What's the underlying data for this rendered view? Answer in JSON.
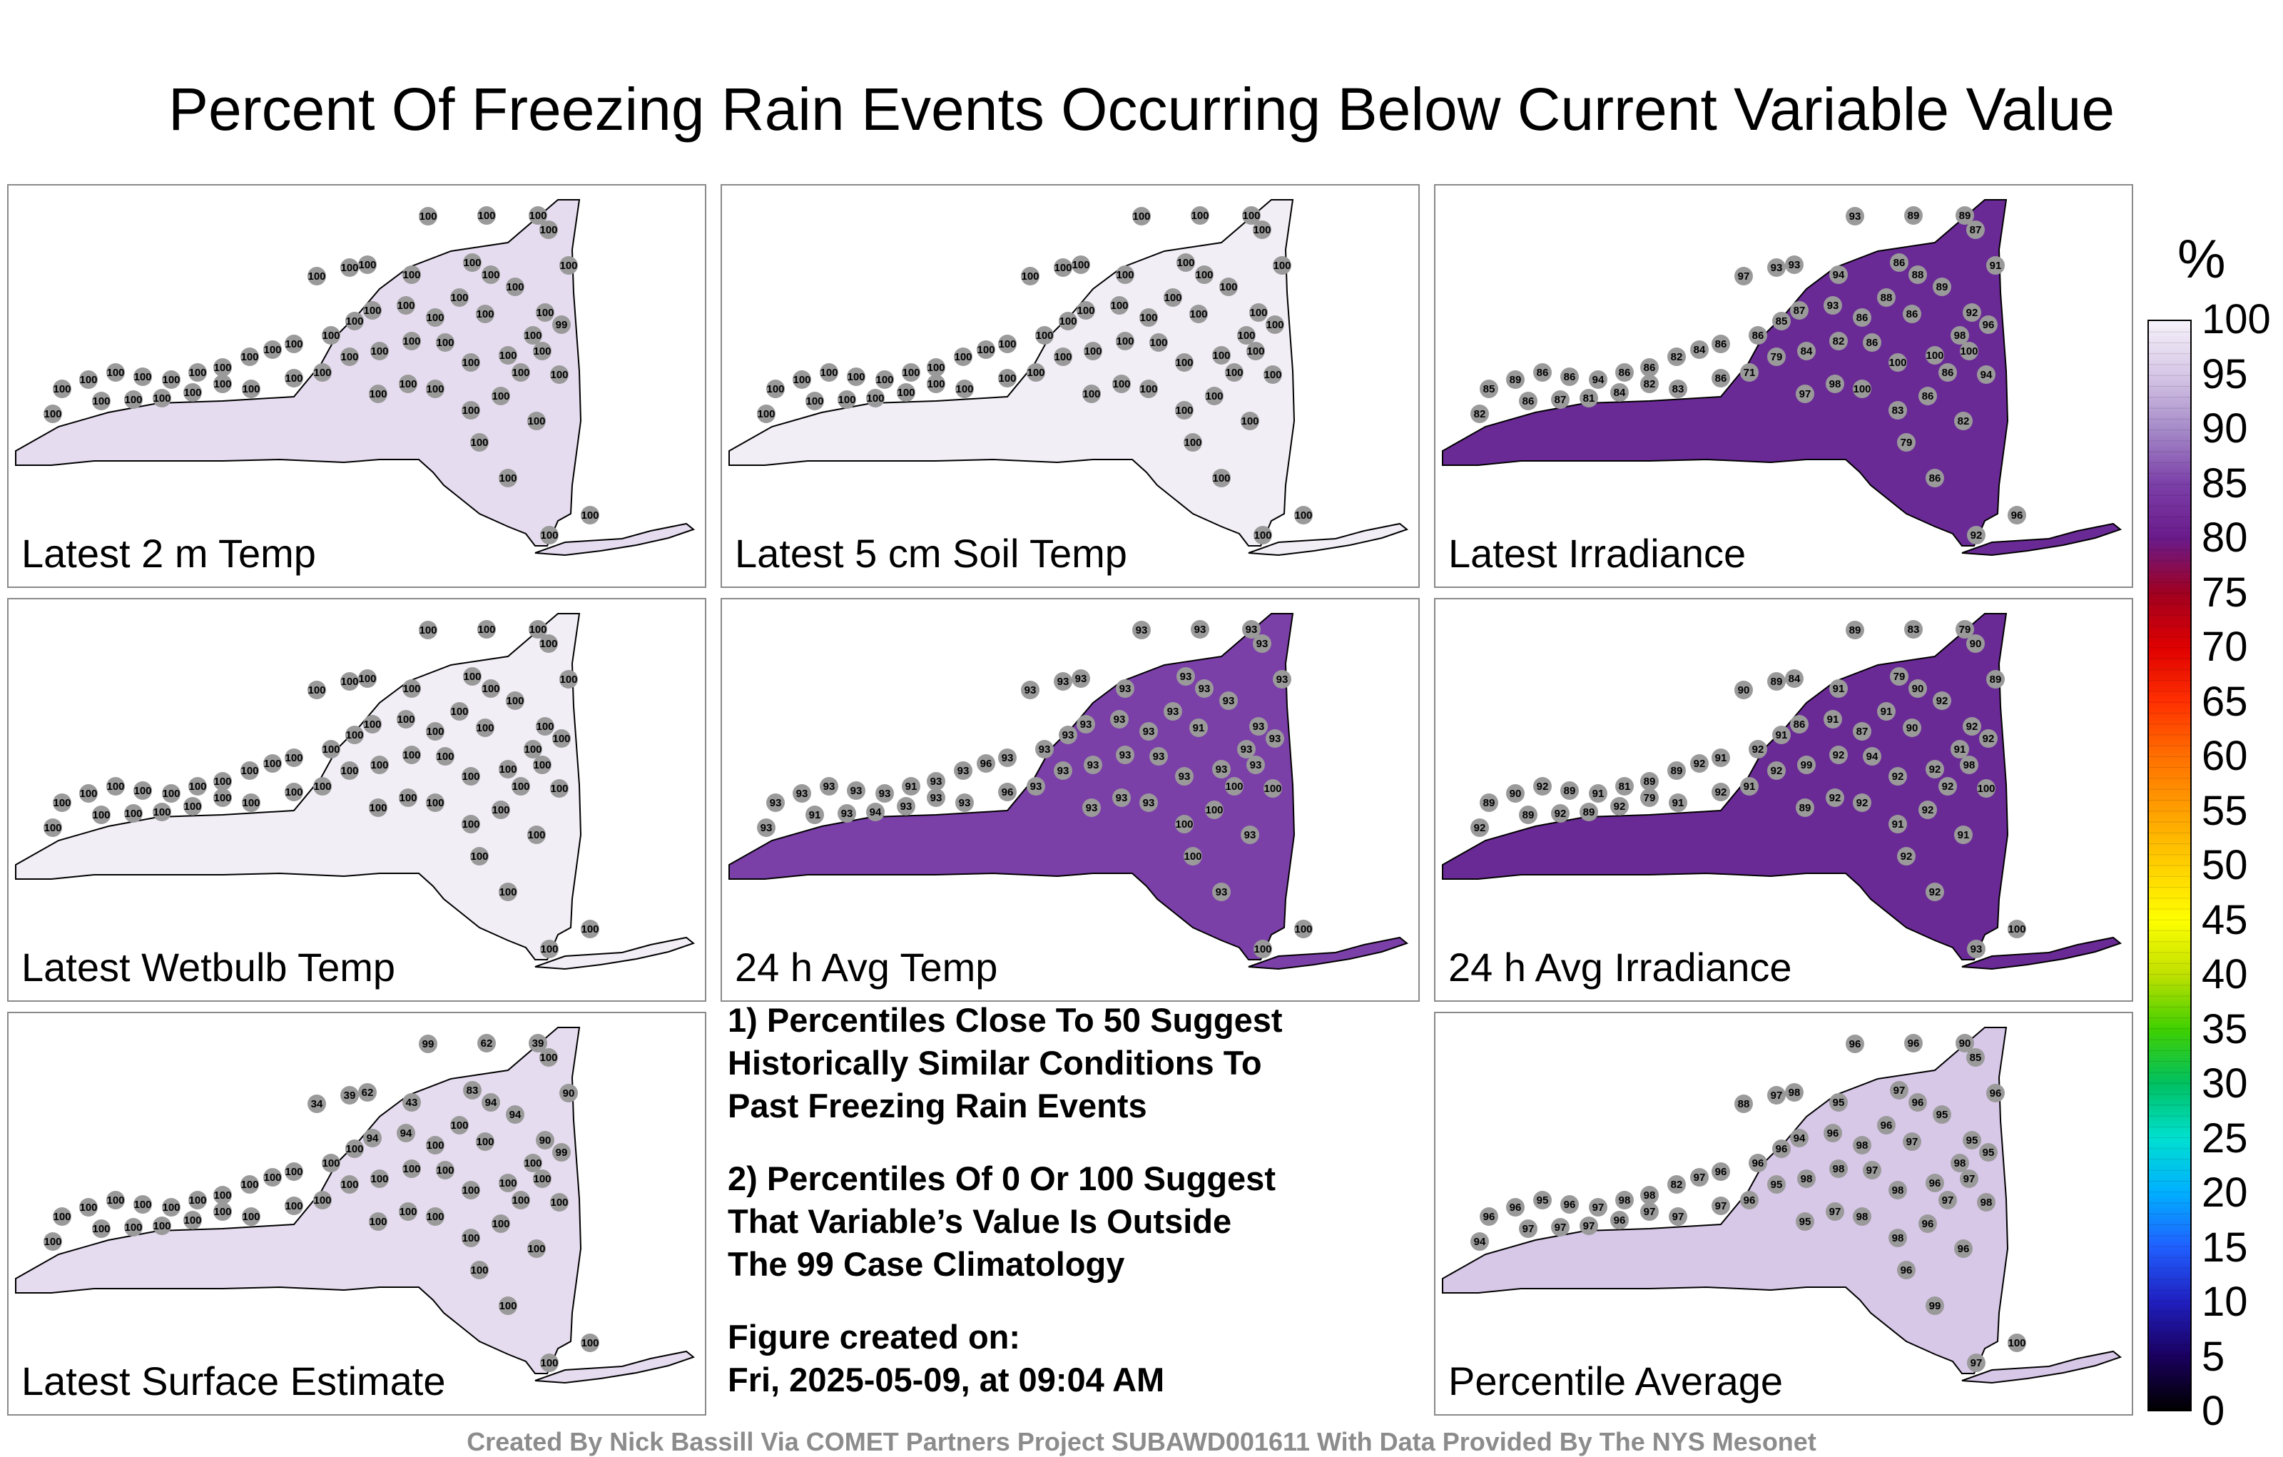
{
  "title": "Percent Of Freezing Rain Events Occurring Below Current Variable Value",
  "panels": [
    {
      "label": "Latest 2 m Temp",
      "fill": "#e6dcef",
      "values": [
        100,
        100,
        100,
        100,
        100,
        100,
        100,
        100,
        100,
        100,
        100,
        100,
        100,
        100,
        100,
        100,
        100,
        100,
        100,
        99,
        100,
        100,
        100,
        100,
        100,
        100,
        100,
        100,
        100,
        100,
        100,
        100,
        100,
        100,
        100,
        100,
        100,
        100,
        100,
        100,
        100,
        100,
        100,
        100,
        100,
        100,
        100,
        100,
        100,
        100,
        100,
        100,
        100,
        100,
        100,
        100,
        100,
        100,
        100,
        100
      ]
    },
    {
      "label": "Latest 5 cm Soil Temp",
      "fill": "#f2eef6",
      "values": [
        100,
        100,
        100,
        100,
        100,
        100,
        100,
        100,
        100,
        100,
        100,
        100,
        100,
        100,
        100,
        100,
        100,
        100,
        100,
        100,
        100,
        100,
        100,
        100,
        100,
        100,
        100,
        100,
        100,
        100,
        100,
        100,
        100,
        100,
        100,
        100,
        100,
        100,
        100,
        100,
        100,
        100,
        100,
        100,
        100,
        100,
        100,
        100,
        100,
        100,
        100,
        100,
        100,
        100,
        100,
        100,
        100,
        100,
        100,
        100
      ]
    },
    {
      "label": "Latest Irradiance",
      "fill": "#6a2a96",
      "values": [
        93,
        89,
        89,
        87,
        93,
        97,
        93,
        94,
        86,
        88,
        89,
        91,
        86,
        88,
        93,
        87,
        86,
        92,
        98,
        96,
        85,
        86,
        86,
        84,
        82,
        86,
        86,
        94,
        86,
        86,
        89,
        85,
        82,
        86,
        87,
        81,
        84,
        82,
        83,
        86,
        71,
        79,
        84,
        82,
        86,
        100,
        100,
        100,
        94,
        86,
        86,
        83,
        100,
        98,
        97,
        79,
        82,
        86,
        92,
        96
      ]
    },
    {
      "label": "Latest Wetbulb Temp",
      "fill": "#f2eef6",
      "values": [
        100,
        100,
        100,
        100,
        100,
        100,
        100,
        100,
        100,
        100,
        100,
        100,
        100,
        100,
        100,
        100,
        100,
        100,
        100,
        100,
        100,
        100,
        100,
        100,
        100,
        100,
        100,
        100,
        100,
        100,
        100,
        100,
        100,
        100,
        100,
        100,
        100,
        100,
        100,
        100,
        100,
        100,
        100,
        100,
        100,
        100,
        100,
        100,
        100,
        100,
        100,
        100,
        100,
        100,
        100,
        100,
        100,
        100,
        100,
        100
      ]
    },
    {
      "label": "24 h Avg Temp",
      "fill": "#7b3fa8",
      "values": [
        93,
        93,
        93,
        93,
        93,
        93,
        93,
        93,
        93,
        93,
        93,
        93,
        93,
        93,
        93,
        93,
        91,
        93,
        93,
        93,
        93,
        93,
        93,
        96,
        93,
        93,
        91,
        93,
        93,
        93,
        93,
        93,
        93,
        91,
        93,
        94,
        93,
        93,
        93,
        96,
        93,
        93,
        93,
        93,
        93,
        93,
        93,
        93,
        100,
        100,
        100,
        100,
        93,
        93,
        93,
        100,
        93,
        93,
        100,
        100
      ]
    },
    {
      "label": "24 h Avg Irradiance",
      "fill": "#6a2a96",
      "values": [
        89,
        83,
        79,
        90,
        89,
        90,
        84,
        91,
        79,
        90,
        92,
        89,
        87,
        91,
        91,
        86,
        90,
        92,
        91,
        92,
        91,
        92,
        91,
        92,
        89,
        89,
        81,
        91,
        89,
        92,
        90,
        89,
        92,
        89,
        92,
        89,
        92,
        79,
        91,
        92,
        91,
        92,
        99,
        92,
        94,
        92,
        92,
        98,
        100,
        92,
        92,
        91,
        92,
        92,
        89,
        92,
        91,
        92,
        93,
        100
      ]
    },
    {
      "label": "Latest Surface Estimate",
      "fill": "#e6dcef",
      "values": [
        99,
        62,
        39,
        100,
        39,
        34,
        62,
        43,
        83,
        94,
        94,
        90,
        100,
        100,
        94,
        94,
        100,
        90,
        100,
        99,
        100,
        100,
        100,
        100,
        100,
        100,
        100,
        100,
        100,
        100,
        100,
        100,
        100,
        100,
        100,
        100,
        100,
        100,
        100,
        100,
        100,
        100,
        100,
        100,
        100,
        100,
        100,
        100,
        100,
        100,
        100,
        100,
        100,
        100,
        100,
        100,
        100,
        100,
        100,
        100
      ]
    },
    {
      "label": "Percentile Average",
      "fill": "#d8c8e8",
      "values": [
        96,
        96,
        90,
        85,
        97,
        88,
        98,
        95,
        97,
        96,
        95,
        96,
        98,
        96,
        96,
        94,
        97,
        95,
        98,
        95,
        96,
        96,
        96,
        97,
        82,
        98,
        98,
        97,
        96,
        95,
        96,
        96,
        94,
        97,
        97,
        97,
        96,
        97,
        97,
        97,
        96,
        95,
        98,
        98,
        97,
        98,
        96,
        97,
        98,
        97,
        96,
        98,
        98,
        97,
        95,
        96,
        96,
        99,
        97,
        100
      ]
    }
  ],
  "notes": {
    "note1": [
      "1) Percentiles Close To 50 Suggest",
      "Historically Similar Conditions To",
      "Past Freezing Rain Events"
    ],
    "note2": [
      "2) Percentiles Of 0 Or 100 Suggest",
      "That Variable’s Value Is Outside",
      "The 99 Case Climatology"
    ],
    "created_label": "Figure created on:",
    "created_date": "Fri, 2025-05-09, at 09:04 AM"
  },
  "colorbar": {
    "unit": "%",
    "ticks": [
      "100",
      "95",
      "90",
      "85",
      "80",
      "75",
      "70",
      "65",
      "60",
      "55",
      "50",
      "45",
      "40",
      "35",
      "30",
      "25",
      "20",
      "15",
      "10",
      "5",
      "0"
    ],
    "colors": [
      "#000000",
      "#1a0060",
      "#2020c0",
      "#2060ff",
      "#00b0ff",
      "#00e0d0",
      "#00c060",
      "#40d000",
      "#c0e000",
      "#ffff00",
      "#ffd000",
      "#ffa000",
      "#ff7000",
      "#ff3000",
      "#e00000",
      "#a00020",
      "#6a1a8a",
      "#7b3fa8",
      "#a58ac8",
      "#d6c6e6",
      "#f6f2fa"
    ]
  },
  "footer": "Created By Nick Bassill Via COMET Partners Project SUBAWD001611 With Data Provided By The NYS Mesonet"
}
